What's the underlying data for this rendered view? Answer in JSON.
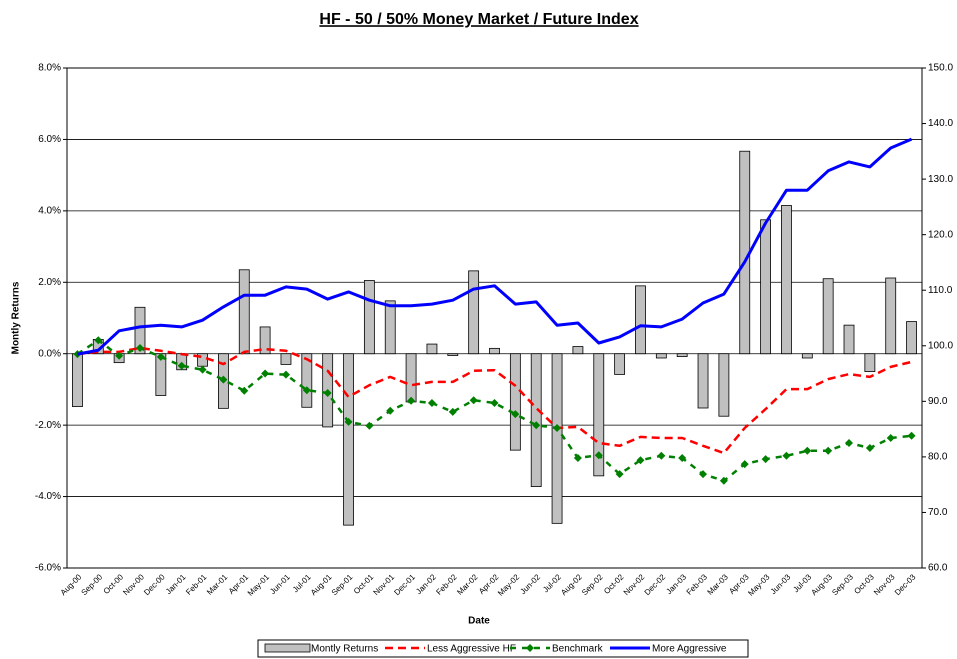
{
  "chart_data": {
    "type": "combo",
    "title": "HF - 50 / 50% Money Market / Future Index",
    "xlabel": "Date",
    "ylabel": "Montly Returns",
    "categories": [
      "Aug-00",
      "Sep-00",
      "Oct-00",
      "Nov-00",
      "Dec-00",
      "Jan-01",
      "Feb-01",
      "Mar-01",
      "Apr-01",
      "May-01",
      "Jun-01",
      "Jul-01",
      "Aug-01",
      "Sep-01",
      "Oct-01",
      "Nov-01",
      "Dec-01",
      "Jan-02",
      "Feb-02",
      "Mar-02",
      "Apr-02",
      "May-02",
      "Jun-02",
      "Jul-02",
      "Aug-02",
      "Sep-02",
      "Oct-02",
      "Nov-02",
      "Dec-02",
      "Jan-03",
      "Feb-03",
      "Mar-03",
      "Apr-03",
      "May-03",
      "Jun-03",
      "Jul-03",
      "Aug-03",
      "Sep-03",
      "Oct-03",
      "Nov-03",
      "Dec-03"
    ],
    "series": [
      {
        "name": "Montly Returns",
        "type": "bar",
        "color": "#c0c0c0",
        "axis": "y",
        "values": [
          -1.48,
          0.4,
          -0.25,
          1.3,
          -1.17,
          -0.45,
          -0.35,
          -1.53,
          2.35,
          0.75,
          -0.3,
          -1.5,
          -2.05,
          -4.8,
          2.05,
          1.48,
          -1.35,
          0.27,
          -0.05,
          2.32,
          0.15,
          -2.7,
          -3.72,
          -4.75,
          0.2,
          -3.42,
          -0.58,
          1.9,
          -0.12,
          -0.08,
          -1.52,
          -1.75,
          5.67,
          3.75,
          4.15,
          -0.12,
          2.1,
          0.8,
          -0.5,
          2.12,
          0.9
        ]
      },
      {
        "name": "Less Aggressive HF",
        "type": "line",
        "style": "dashed",
        "color": "#ff0000",
        "axis": "y2",
        "values": [
          98.5,
          98.9,
          98.9,
          99.6,
          99.1,
          98.5,
          98.0,
          96.7,
          98.9,
          99.4,
          99.1,
          97.6,
          95.5,
          90.8,
          92.9,
          94.4,
          92.9,
          93.5,
          93.5,
          95.5,
          95.6,
          92.8,
          88.8,
          85.2,
          85.4,
          82.5,
          82.0,
          83.6,
          83.4,
          83.4,
          82.0,
          80.7,
          85.2,
          88.6,
          92.2,
          92.2,
          94.0,
          94.9,
          94.4,
          96.2,
          97.1
        ]
      },
      {
        "name": "Benchmark",
        "type": "line",
        "style": "dashed-diamond",
        "color": "#008000",
        "axis": "y2",
        "values": [
          98.5,
          101.0,
          98.2,
          99.6,
          98.0,
          96.4,
          95.7,
          93.9,
          91.9,
          95.0,
          94.8,
          92.0,
          91.5,
          86.3,
          85.6,
          88.3,
          90.1,
          89.7,
          88.1,
          90.2,
          89.7,
          87.7,
          85.7,
          85.2,
          79.8,
          80.3,
          76.9,
          79.4,
          80.2,
          79.8,
          76.9,
          75.7,
          78.7,
          79.6,
          80.2,
          81.1,
          81.1,
          82.5,
          81.6,
          83.4,
          83.8
        ]
      },
      {
        "name": "More Aggressive",
        "type": "line",
        "style": "solid",
        "color": "#0000ff",
        "axis": "y2",
        "values": [
          98.5,
          99.2,
          102.7,
          103.4,
          103.7,
          103.4,
          104.6,
          107.0,
          109.1,
          109.1,
          110.6,
          110.2,
          108.4,
          109.7,
          108.2,
          107.2,
          107.2,
          107.5,
          108.2,
          110.2,
          110.8,
          107.5,
          107.9,
          103.7,
          104.1,
          100.5,
          101.6,
          103.6,
          103.4,
          104.8,
          107.7,
          109.3,
          115.1,
          122.1,
          128.0,
          128.0,
          131.5,
          133.1,
          132.2,
          135.6,
          137.2
        ]
      }
    ],
    "ylim": [
      -6,
      8
    ],
    "yticks": [
      {
        "value": -6,
        "label": "-6.0%"
      },
      {
        "value": -4,
        "label": "-4.0%"
      },
      {
        "value": -2,
        "label": "-2.0%"
      },
      {
        "value": 0,
        "label": "0.0%"
      },
      {
        "value": 2,
        "label": "2.0%"
      },
      {
        "value": 4,
        "label": "4.0%"
      },
      {
        "value": 6,
        "label": "6.0%"
      },
      {
        "value": 8,
        "label": "8.0%"
      }
    ],
    "y2lim": [
      60,
      150
    ],
    "y2ticks": [
      {
        "value": 60,
        "label": "60.0"
      },
      {
        "value": 70,
        "label": "70.0"
      },
      {
        "value": 80,
        "label": "80.0"
      },
      {
        "value": 90,
        "label": "90.0"
      },
      {
        "value": 100,
        "label": "100.0"
      },
      {
        "value": 110,
        "label": "110.0"
      },
      {
        "value": 120,
        "label": "120.0"
      },
      {
        "value": 130,
        "label": "130.0"
      },
      {
        "value": 140,
        "label": "140.0"
      },
      {
        "value": 150,
        "label": "150.0"
      }
    ],
    "grid": true,
    "legend": "bottom"
  }
}
